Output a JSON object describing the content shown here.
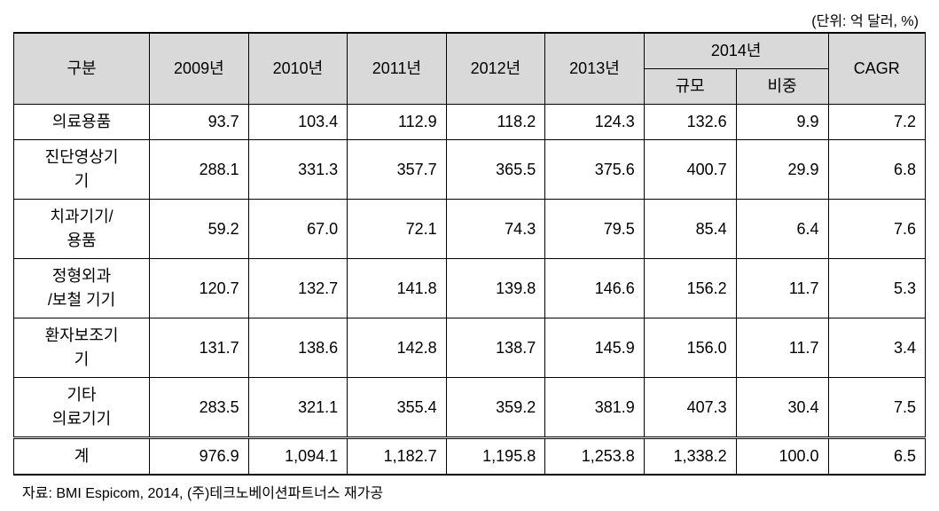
{
  "unit_label": "(단위: 억 달러, %)",
  "header": {
    "category": "구분",
    "y2009": "2009년",
    "y2010": "2010년",
    "y2011": "2011년",
    "y2012": "2012년",
    "y2013": "2013년",
    "y2014": "2014년",
    "sub_scale": "규모",
    "sub_share": "비중",
    "cagr": "CAGR"
  },
  "rows": [
    {
      "label": "의료용품",
      "v": [
        "93.7",
        "103.4",
        "112.9",
        "118.2",
        "124.3",
        "132.6",
        "9.9",
        "7.2"
      ]
    },
    {
      "label": "진단영상기기",
      "v": [
        "288.1",
        "331.3",
        "357.7",
        "365.5",
        "375.6",
        "400.7",
        "29.9",
        "6.8"
      ]
    },
    {
      "label": "치과기기/용품",
      "v": [
        "59.2",
        "67.0",
        "72.1",
        "74.3",
        "79.5",
        "85.4",
        "6.4",
        "7.6"
      ]
    },
    {
      "label": "정형외과 /보철 기기",
      "v": [
        "120.7",
        "132.7",
        "141.8",
        "139.8",
        "146.6",
        "156.2",
        "11.7",
        "5.3"
      ]
    },
    {
      "label": "환자보조기기",
      "v": [
        "131.7",
        "138.6",
        "142.8",
        "138.7",
        "145.9",
        "156.0",
        "11.7",
        "3.4"
      ]
    },
    {
      "label": "기타 의료기기",
      "v": [
        "283.5",
        "321.1",
        "355.4",
        "359.2",
        "381.9",
        "407.3",
        "30.4",
        "7.5"
      ]
    }
  ],
  "totals": {
    "label": "계",
    "v": [
      "976.9",
      "1,094.1",
      "1,182.7",
      "1,195.8",
      "1,253.8",
      "1,338.2",
      "100.0",
      "6.5"
    ]
  },
  "footnote": "자료: BMI Espicom, 2014, (주)테크노베이션파트너스 재가공",
  "row_labels_multiline": {
    "1": "진단영상기\n기",
    "2": "치과기기/\n용품",
    "3": "정형외과\n/보철 기기",
    "4": "환자보조기\n기",
    "5": "기타\n의료기기"
  }
}
